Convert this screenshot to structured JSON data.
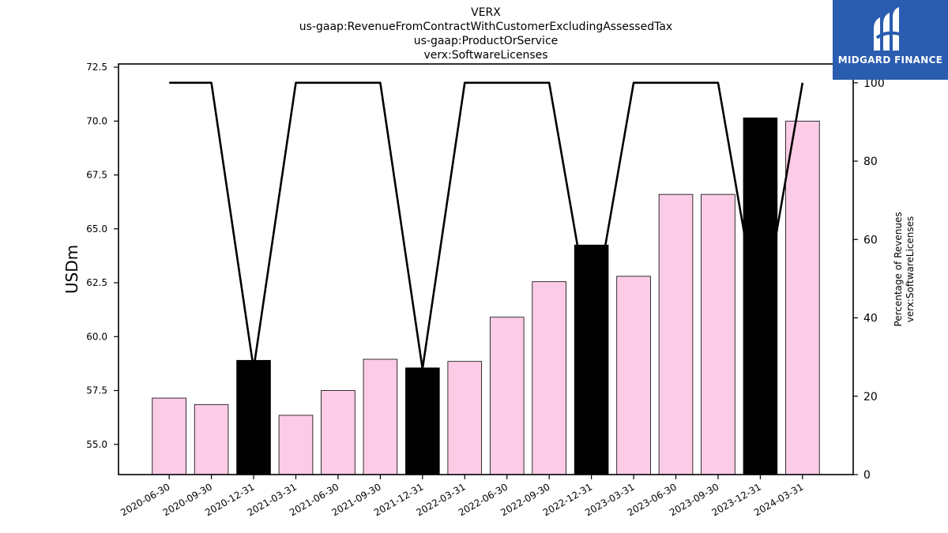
{
  "chart_data": {
    "type": "bar",
    "title_lines": [
      "VERX",
      "us-gaap:RevenueFromContractWithCustomerExcludingAssessedTax",
      "us-gaap:ProductOrService",
      "verx:SoftwareLicenses"
    ],
    "ylabel": "USDm",
    "ylabel_right": [
      "Percentage of Revenues",
      "verx:SoftwareLicenses"
    ],
    "categories": [
      "2020-06-30",
      "2020-09-30",
      "2020-12-31",
      "2021-03-31",
      "2021-06-30",
      "2021-09-30",
      "2021-12-31",
      "2022-03-31",
      "2022-06-30",
      "2022-09-30",
      "2022-12-31",
      "2023-03-31",
      "2023-06-30",
      "2023-09-30",
      "2023-12-31",
      "2024-03-31"
    ],
    "values": [
      57.15,
      56.85,
      58.9,
      56.35,
      57.5,
      58.95,
      58.55,
      58.85,
      60.9,
      62.55,
      64.25,
      62.8,
      66.6,
      66.6,
      70.15,
      70.0
    ],
    "highlight": [
      false,
      false,
      true,
      false,
      false,
      false,
      true,
      false,
      false,
      false,
      true,
      false,
      false,
      false,
      true,
      false
    ],
    "series_right": [
      100,
      100,
      27,
      100,
      100,
      100,
      27,
      100,
      100,
      100,
      38,
      100,
      100,
      100,
      38,
      100
    ],
    "ylim": [
      53.6,
      72.65
    ],
    "yticks": [
      "55.0",
      "57.5",
      "60.0",
      "62.5",
      "65.0",
      "67.5",
      "70.0",
      "72.5"
    ],
    "ylim_right": [
      0,
      104.8
    ],
    "yticks_right": [
      "0",
      "20",
      "40",
      "60",
      "80",
      "100"
    ],
    "colors": {
      "bar": "#fccbe6",
      "highlight": "#000000",
      "line": "#000000"
    }
  },
  "logo": {
    "text": "MIDGARD FINANCE"
  }
}
